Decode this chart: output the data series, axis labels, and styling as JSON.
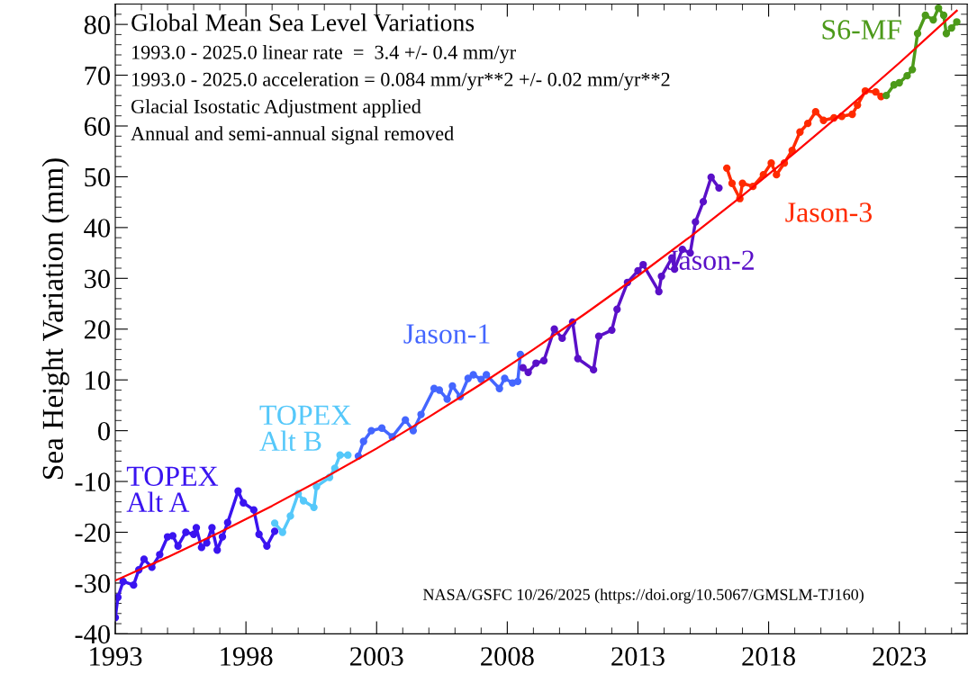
{
  "chart_data": {
    "type": "line",
    "title": "Global Mean Sea Level Variations",
    "ylabel": "Sea Height Variation (mm)",
    "annotations": [
      "1993.0 - 2025.0 linear rate  =  3.4 +/- 0.4 mm/yr",
      "1993.0 - 2025.0 acceleration = 0.084 mm/yr**2 +/- 0.02 mm/yr**2",
      "Glacial Isostatic Adjustment applied",
      "Annual and semi-annual signal removed",
      "NASA/GSFC 10/26/2025 (https://doi.org/10.5067/GMSLM-TJ160)"
    ],
    "xlim": [
      1993,
      2025.6
    ],
    "ylim": [
      -40,
      84
    ],
    "xticks": [
      1993,
      1998,
      2003,
      2008,
      2013,
      2018,
      2023
    ],
    "yticks": [
      -40,
      -30,
      -20,
      -10,
      0,
      10,
      20,
      30,
      40,
      50,
      60,
      70,
      80
    ],
    "grid": false,
    "marker": "circle",
    "line_style": "solid",
    "series": [
      {
        "name": "TOPEX\nAlt A",
        "color": "#3a14f0",
        "x": [
          1993.0,
          1993.1,
          1993.3,
          1993.7,
          1993.9,
          1994.1,
          1994.4,
          1994.7,
          1995.0,
          1995.2,
          1995.4,
          1995.7,
          1996.0,
          1996.1,
          1996.3,
          1996.5,
          1996.7,
          1996.9,
          1997.1,
          1997.3,
          1997.7,
          1997.9,
          1998.3,
          1998.5,
          1998.8,
          1999.1
        ],
        "values": [
          -36.8,
          -32.8,
          -29.7,
          -30.4,
          -27.4,
          -25.3,
          -26.9,
          -24.4,
          -20.9,
          -20.7,
          -22.7,
          -20.0,
          -20.4,
          -19.1,
          -23.0,
          -22.1,
          -19.1,
          -23.5,
          -20.9,
          -18.1,
          -11.9,
          -14.2,
          -15.6,
          -20.4,
          -22.7,
          -19.8
        ]
      },
      {
        "name": "TOPEX\nAlt B",
        "color": "#55c8fa",
        "x": [
          1999.1,
          1999.4,
          1999.7,
          2000.0,
          2000.2,
          2000.6,
          2000.7,
          2001.2,
          2001.4,
          2001.6,
          2001.9
        ],
        "values": [
          -18.2,
          -20.0,
          -16.8,
          -12.4,
          -13.8,
          -15.1,
          -11.0,
          -9.2,
          -7.4,
          -4.8,
          -4.8
        ]
      },
      {
        "name": "Jason-1",
        "color": "#4466ff",
        "x": [
          2002.3,
          2002.5,
          2002.8,
          2003.2,
          2003.6,
          2004.1,
          2004.4,
          2004.7,
          2005.2,
          2005.4,
          2005.7,
          2005.9,
          2006.2,
          2006.5,
          2006.7,
          2007.0,
          2007.2,
          2007.7,
          2007.9,
          2008.2,
          2008.4,
          2008.5
        ],
        "values": [
          -5.0,
          -2.1,
          0.0,
          0.5,
          -1.2,
          2.1,
          0.0,
          3.2,
          8.3,
          8.0,
          6.2,
          8.8,
          6.7,
          10.3,
          11.0,
          10.1,
          11.0,
          8.3,
          10.3,
          9.4,
          9.7,
          15.0
        ]
      },
      {
        "name": "Jason-2",
        "color": "#5a10c8",
        "x": [
          2008.6,
          2008.8,
          2009.1,
          2009.4,
          2009.8,
          2010.1,
          2010.5,
          2010.7,
          2011.3,
          2011.5,
          2012.0,
          2012.2,
          2012.6,
          2013.0,
          2013.2,
          2013.8,
          2013.9,
          2014.3,
          2014.4,
          2014.7,
          2015.0,
          2015.2,
          2015.5,
          2015.8,
          2016.1
        ],
        "values": [
          12.4,
          11.5,
          13.3,
          13.8,
          20.0,
          18.2,
          21.4,
          14.2,
          12.0,
          18.6,
          19.8,
          23.9,
          29.2,
          31.5,
          32.7,
          27.4,
          30.4,
          34.0,
          31.8,
          35.7,
          35.0,
          41.1,
          45.1,
          49.9,
          47.8
        ]
      },
      {
        "name": "Jason-3",
        "color": "#ff2a00",
        "x": [
          2016.4,
          2016.6,
          2016.9,
          2017.0,
          2017.4,
          2017.8,
          2018.1,
          2018.3,
          2018.6,
          2018.9,
          2019.2,
          2019.5,
          2019.8,
          2020.1,
          2020.5,
          2020.8,
          2021.2,
          2021.4,
          2021.7,
          2022.1,
          2022.3
        ],
        "values": [
          51.7,
          48.7,
          45.7,
          48.7,
          48.1,
          50.4,
          52.7,
          50.4,
          52.7,
          55.2,
          58.8,
          60.5,
          62.8,
          61.1,
          61.6,
          61.9,
          62.3,
          64.1,
          66.9,
          66.7,
          65.8
        ]
      },
      {
        "name": "S6-MF",
        "color": "#4c9a1a",
        "x": [
          2022.5,
          2022.8,
          2023.0,
          2023.3,
          2023.5,
          2023.7,
          2024.0,
          2024.3,
          2024.5,
          2024.7,
          2024.8,
          2025.0,
          2025.2
        ],
        "values": [
          66.0,
          68.1,
          68.5,
          69.9,
          71.1,
          78.2,
          81.8,
          80.9,
          83.2,
          81.8,
          78.2,
          79.3,
          80.5
        ]
      },
      {
        "color": "#ff0000",
        "marker": "none",
        "x": [
          1993,
          1995,
          1997,
          1999,
          2001,
          2003,
          2005,
          2007,
          2009,
          2011,
          2013,
          2015,
          2017,
          2019,
          2021,
          2023,
          2025.2
        ],
        "values": [
          -29.5,
          -24.9,
          -20.0,
          -14.8,
          -9.3,
          -3.5,
          2.7,
          9.2,
          16.0,
          23.1,
          30.5,
          38.2,
          46.3,
          54.7,
          63.4,
          72.4,
          82.7
        ]
      }
    ]
  }
}
